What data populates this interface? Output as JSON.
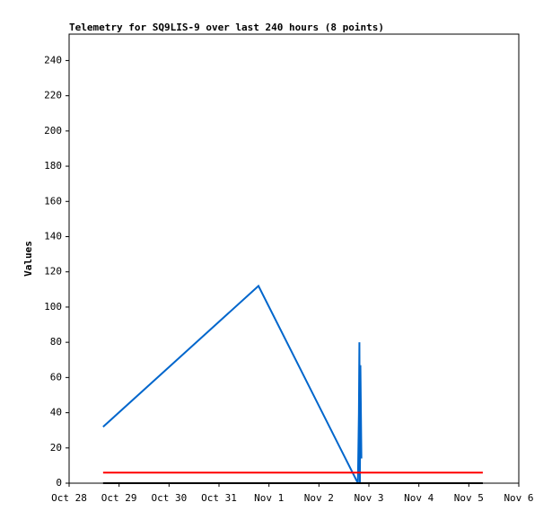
{
  "chart_data": {
    "type": "line",
    "title": "Telemetry for SQ9LIS-9 over last 240 hours (8 points)",
    "y_label": "Values",
    "xlim": [
      0,
      9
    ],
    "xticks": [
      {
        "value": 0,
        "label": "Oct 28"
      },
      {
        "value": 1,
        "label": "Oct 29"
      },
      {
        "value": 2,
        "label": "Oct 30"
      },
      {
        "value": 3,
        "label": "Oct 31"
      },
      {
        "value": 4,
        "label": "Nov 1"
      },
      {
        "value": 5,
        "label": "Nov 2"
      },
      {
        "value": 6,
        "label": "Nov 3"
      },
      {
        "value": 7,
        "label": "Nov 4"
      },
      {
        "value": 8,
        "label": "Nov 5"
      },
      {
        "value": 9,
        "label": "Nov 6"
      }
    ],
    "ylim": [
      0,
      255
    ],
    "yticks": [
      0,
      20,
      40,
      60,
      80,
      100,
      120,
      140,
      160,
      180,
      200,
      220,
      240
    ],
    "series": [
      {
        "color": "#0066cc",
        "x": [
          0.68,
          3.79,
          5.78,
          5.8,
          5.81,
          5.82,
          5.83,
          5.85
        ],
        "values": [
          32,
          112,
          0,
          40,
          80,
          0,
          67,
          14
        ]
      },
      {
        "color": "#ff0000",
        "x": [
          0.68,
          8.28
        ],
        "values": [
          6,
          6
        ]
      },
      {
        "color": "#000000",
        "x": [
          0.68,
          8.28
        ],
        "values": [
          0,
          0
        ]
      }
    ]
  }
}
